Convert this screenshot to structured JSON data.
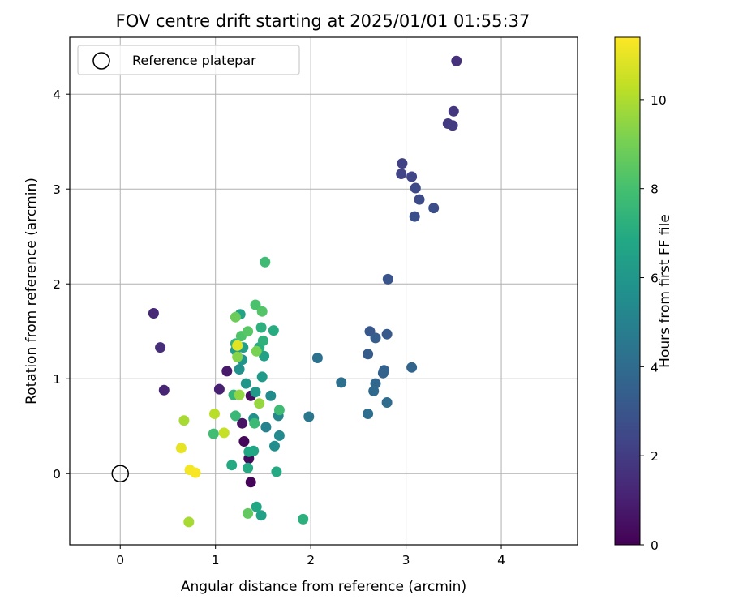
{
  "chart_data": {
    "type": "scatter",
    "title": "FOV centre drift starting at 2025/01/01 01:55:37",
    "xlabel": "Angular distance from reference (arcmin)",
    "ylabel": "Rotation from reference (arcmin)",
    "xlim": [
      -0.53,
      4.8
    ],
    "ylim": [
      -0.75,
      4.6
    ],
    "xticks": [
      "0",
      "1",
      "2",
      "3",
      "4"
    ],
    "yticks": [
      "0",
      "1",
      "2",
      "3",
      "4"
    ],
    "grid": true,
    "legend": {
      "placement": "upper-left",
      "entries": [
        "Reference platepar"
      ]
    },
    "reference_point": {
      "x": 0,
      "y": 0,
      "label": "Reference platepar"
    },
    "colorbar": {
      "label": "Hours from first FF file",
      "range": [
        0,
        11.4
      ],
      "ticks": [
        "0",
        "2",
        "4",
        "6",
        "8",
        "10"
      ],
      "colormap": "viridis"
    },
    "series": [
      {
        "comment": "points as [x, y, hours]",
        "points": [
          [
            1.37,
            -0.09,
            0.1
          ],
          [
            1.3,
            0.34,
            0.2
          ],
          [
            1.35,
            0.16,
            0.3
          ],
          [
            1.37,
            0.82,
            0.4
          ],
          [
            1.28,
            0.53,
            0.6
          ],
          [
            1.12,
            1.08,
            0.8
          ],
          [
            1.04,
            0.89,
            1.0
          ],
          [
            0.46,
            0.88,
            1.2
          ],
          [
            0.35,
            1.69,
            1.3
          ],
          [
            0.42,
            1.33,
            1.5
          ],
          [
            3.53,
            4.35,
            1.6
          ],
          [
            3.5,
            3.82,
            1.8
          ],
          [
            3.44,
            3.69,
            1.9
          ],
          [
            3.49,
            3.67,
            2.0
          ],
          [
            2.96,
            3.27,
            2.2
          ],
          [
            2.95,
            3.16,
            2.3
          ],
          [
            3.06,
            3.13,
            2.4
          ],
          [
            3.1,
            3.01,
            2.5
          ],
          [
            3.14,
            2.89,
            2.6
          ],
          [
            3.29,
            2.8,
            2.7
          ],
          [
            3.09,
            2.71,
            2.8
          ],
          [
            2.81,
            2.05,
            3.0
          ],
          [
            2.62,
            1.5,
            3.1
          ],
          [
            2.8,
            1.47,
            3.2
          ],
          [
            2.6,
            1.26,
            3.3
          ],
          [
            2.68,
            1.43,
            3.4
          ],
          [
            2.77,
            1.09,
            3.5
          ],
          [
            2.76,
            1.06,
            3.6
          ],
          [
            3.06,
            1.12,
            3.7
          ],
          [
            2.68,
            0.95,
            3.8
          ],
          [
            2.66,
            0.87,
            3.9
          ],
          [
            2.8,
            0.75,
            4.0
          ],
          [
            2.6,
            0.63,
            4.1
          ],
          [
            2.32,
            0.96,
            4.2
          ],
          [
            2.07,
            1.22,
            4.3
          ],
          [
            1.98,
            0.6,
            4.5
          ],
          [
            1.53,
            0.49,
            5.0
          ],
          [
            1.66,
            0.61,
            5.2
          ],
          [
            1.67,
            0.4,
            5.4
          ],
          [
            1.58,
            0.82,
            5.5
          ],
          [
            1.62,
            0.29,
            5.6
          ],
          [
            1.4,
            0.58,
            5.7
          ],
          [
            1.25,
            1.1,
            5.8
          ],
          [
            1.28,
            1.2,
            5.9
          ],
          [
            1.32,
            0.95,
            6.0
          ],
          [
            1.42,
            0.86,
            6.1
          ],
          [
            1.49,
            1.02,
            6.2
          ],
          [
            1.21,
            1.3,
            6.3
          ],
          [
            1.29,
            1.33,
            6.4
          ],
          [
            1.51,
            1.24,
            6.5
          ],
          [
            1.26,
            1.68,
            6.6
          ],
          [
            1.4,
            0.24,
            6.7
          ],
          [
            1.35,
            0.23,
            6.8
          ],
          [
            1.17,
            0.09,
            6.9
          ],
          [
            1.34,
            0.06,
            6.9
          ],
          [
            1.64,
            0.02,
            6.9
          ],
          [
            1.61,
            1.51,
            7.0
          ],
          [
            1.46,
            1.33,
            7.1
          ],
          [
            1.48,
            1.54,
            7.2
          ],
          [
            1.5,
            1.4,
            7.3
          ],
          [
            1.21,
            1.37,
            7.4
          ],
          [
            1.19,
            0.83,
            7.5
          ],
          [
            1.21,
            0.61,
            7.6
          ],
          [
            1.41,
            0.53,
            7.7
          ],
          [
            1.67,
            0.67,
            7.8
          ],
          [
            1.48,
            -0.44,
            6.5
          ],
          [
            1.43,
            -0.35,
            6.8
          ],
          [
            1.92,
            -0.48,
            7.2
          ],
          [
            1.52,
            2.23,
            7.8
          ],
          [
            0.98,
            0.42,
            7.9
          ],
          [
            1.27,
            1.45,
            8.2
          ],
          [
            1.42,
            1.78,
            8.1
          ],
          [
            1.49,
            1.71,
            8.3
          ],
          [
            1.34,
            1.5,
            8.4
          ],
          [
            1.34,
            -0.42,
            8.6
          ],
          [
            1.21,
            1.65,
            8.8
          ],
          [
            1.23,
            1.35,
            9.0
          ],
          [
            1.43,
            1.29,
            9.1
          ],
          [
            1.23,
            1.23,
            9.3
          ],
          [
            1.25,
            0.83,
            9.5
          ],
          [
            1.46,
            0.74,
            9.6
          ],
          [
            0.67,
            0.56,
            9.9
          ],
          [
            0.72,
            -0.51,
            9.9
          ],
          [
            0.99,
            0.63,
            10.2
          ],
          [
            1.09,
            0.43,
            10.4
          ],
          [
            0.64,
            0.27,
            11.0
          ],
          [
            0.73,
            0.04,
            11.2
          ],
          [
            0.79,
            0.01,
            11.3
          ],
          [
            1.23,
            1.35,
            10.9
          ]
        ]
      }
    ]
  }
}
